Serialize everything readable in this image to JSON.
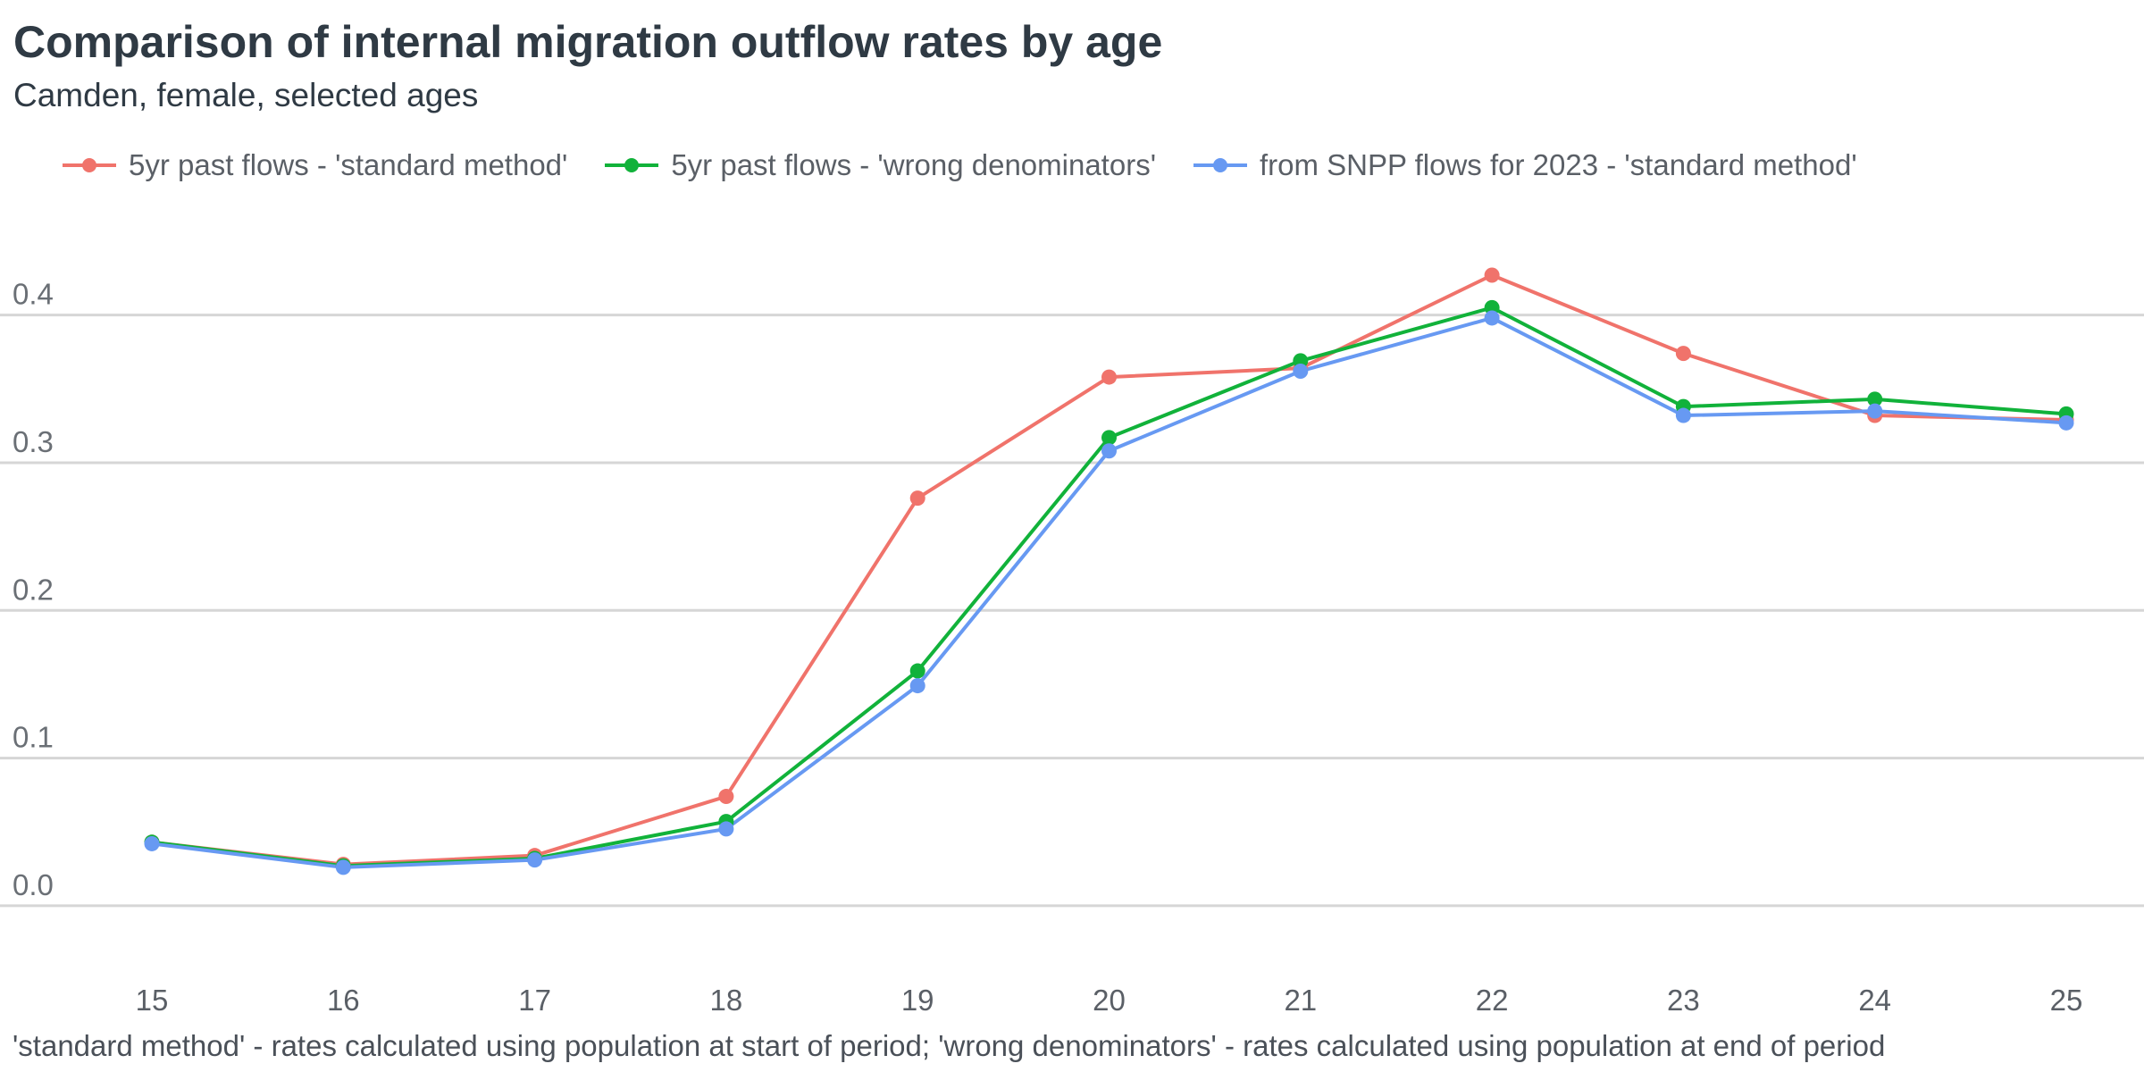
{
  "chart_data": {
    "type": "line",
    "title": "Comparison of internal migration outflow rates by age",
    "subtitle": "Camden, female, selected ages",
    "caption": "'standard method' - rates calculated using population at start of period; 'wrong denominators' - rates calculated using population at end of period",
    "xlabel": "",
    "ylabel": "",
    "x": [
      15,
      16,
      17,
      18,
      19,
      20,
      21,
      22,
      23,
      24,
      25
    ],
    "ylim": [
      -0.04,
      0.45
    ],
    "yticks": [
      0.0,
      0.1,
      0.2,
      0.3,
      0.4
    ],
    "ytick_labels": [
      "0.0",
      "0.1",
      "0.2",
      "0.3",
      "0.4"
    ],
    "grid": true,
    "legend_position": "top",
    "series": [
      {
        "name": "5yr past flows - 'standard method'",
        "color": "#f0736b",
        "values": [
          0.043,
          0.028,
          0.034,
          0.074,
          0.276,
          0.358,
          0.364,
          0.427,
          0.374,
          0.332,
          0.329
        ]
      },
      {
        "name": "5yr past flows - 'wrong denominators'",
        "color": "#11b23a",
        "values": [
          0.043,
          0.027,
          0.032,
          0.057,
          0.159,
          0.317,
          0.369,
          0.405,
          0.338,
          0.343,
          0.333
        ]
      },
      {
        "name": "from SNPP flows for 2023 - 'standard method'",
        "color": "#6799f2",
        "values": [
          0.042,
          0.026,
          0.031,
          0.052,
          0.149,
          0.308,
          0.362,
          0.398,
          0.332,
          0.335,
          0.327
        ]
      }
    ]
  }
}
